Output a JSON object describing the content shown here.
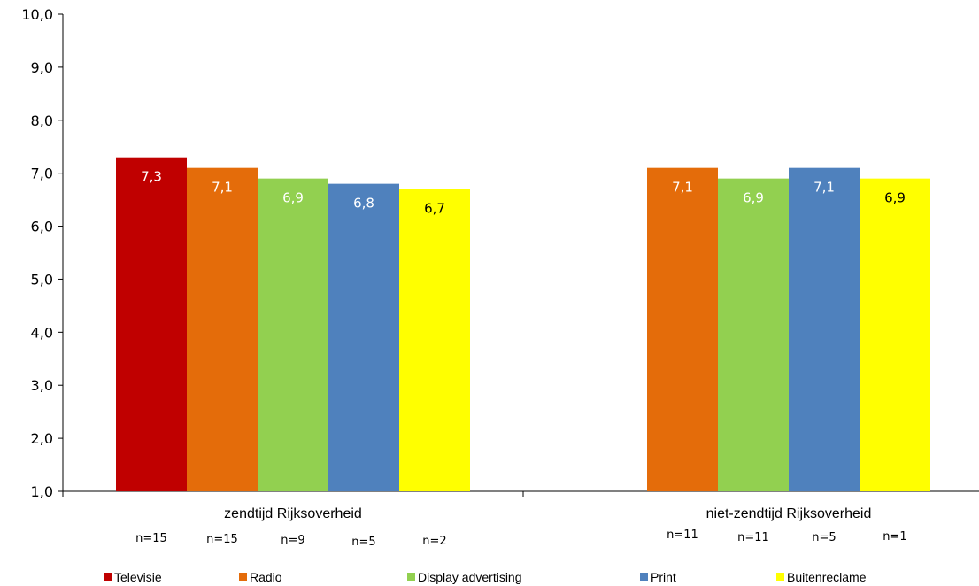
{
  "chart_data": {
    "type": "bar",
    "title": "",
    "xlabel": "",
    "ylabel": "",
    "ylim": [
      1,
      10
    ],
    "yticks": [
      "1,0",
      "2,0",
      "3,0",
      "4,0",
      "5,0",
      "6,0",
      "7,0",
      "8,0",
      "9,0",
      "10,0"
    ],
    "grid": false,
    "legend_position": "bottom",
    "groups": [
      {
        "label": "zendtijd Rijksoverheid",
        "bars": [
          {
            "series": "Televisie",
            "value": 7.3,
            "label": "7,3",
            "n": "n=15"
          },
          {
            "series": "Radio",
            "value": 7.1,
            "label": "7,1",
            "n": "n=15"
          },
          {
            "series": "Display advertising",
            "value": 6.9,
            "label": "6,9",
            "n": "n=9"
          },
          {
            "series": "Print",
            "value": 6.8,
            "label": "6,8",
            "n": "n=5"
          },
          {
            "series": "Buitenreclame",
            "value": 6.7,
            "label": "6,7",
            "n": "n=2"
          }
        ]
      },
      {
        "label": "niet-zendtijd Rijksoverheid",
        "bars": [
          {
            "series": "Radio",
            "value": 7.1,
            "label": "7,1",
            "n": "n=11"
          },
          {
            "series": "Display advertising",
            "value": 6.9,
            "label": "6,9",
            "n": "n=11"
          },
          {
            "series": "Print",
            "value": 7.1,
            "label": "7,1",
            "n": "n=5"
          },
          {
            "series": "Buitenreclame",
            "value": 6.9,
            "label": "6,9",
            "n": "n=1"
          }
        ]
      }
    ],
    "series": [
      {
        "name": "Televisie",
        "color": "#c00000",
        "label_color": "#ffffff"
      },
      {
        "name": "Radio",
        "color": "#e46c0a",
        "label_color": "#ffffff"
      },
      {
        "name": "Display advertising",
        "color": "#92d050",
        "label_color": "#ffffff"
      },
      {
        "name": "Print",
        "color": "#4f81bd",
        "label_color": "#ffffff"
      },
      {
        "name": "Buitenreclame",
        "color": "#ffff00",
        "label_color": "#000000"
      }
    ]
  }
}
